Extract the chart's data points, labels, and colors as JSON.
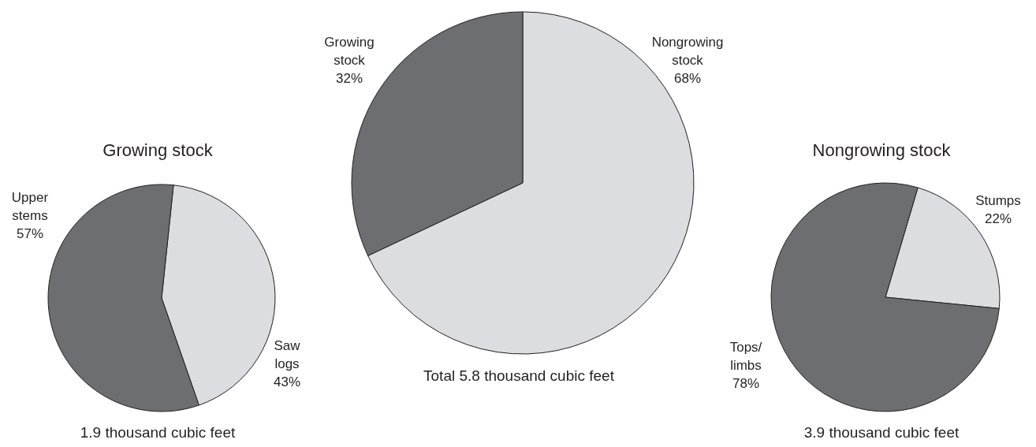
{
  "chart_data": [
    {
      "type": "pie",
      "title": "Growing stock",
      "categories": [
        "Saw logs",
        "Upper stems"
      ],
      "values": [
        43,
        57
      ],
      "value_labels": [
        "43%",
        "57%"
      ],
      "colors": [
        "#dcdde0",
        "#6d6e71"
      ],
      "annotations": [
        "1.9 thousand cubic feet"
      ]
    },
    {
      "type": "pie",
      "categories": [
        "Nongrowing stock",
        "Growing stock"
      ],
      "values": [
        68,
        32
      ],
      "value_labels": [
        "68%",
        "32%"
      ],
      "colors": [
        "#dcdde0",
        "#6d6e71"
      ],
      "annotations": [
        "Total 5.8 thousand cubic feet"
      ]
    },
    {
      "type": "pie",
      "title": "Nongrowing stock",
      "categories": [
        "Stumps",
        "Tops/limbs"
      ],
      "values": [
        22,
        78
      ],
      "value_labels": [
        "22%",
        "78%"
      ],
      "colors": [
        "#dcdde0",
        "#6d6e71"
      ],
      "annotations": [
        "3.9 thousand cubic feet"
      ]
    }
  ]
}
